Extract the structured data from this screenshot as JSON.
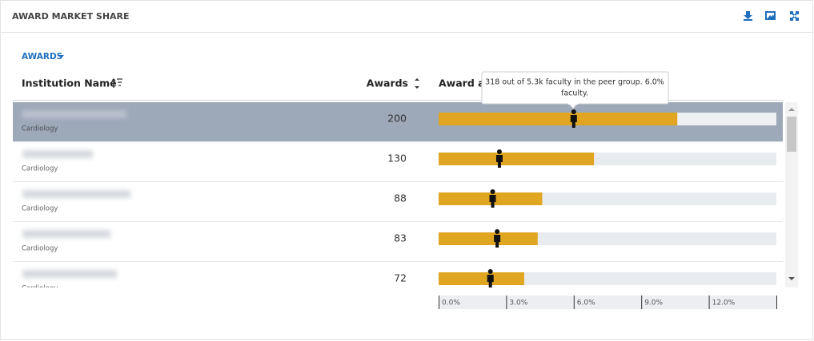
{
  "header": {
    "title": "AWARD MARKET SHARE"
  },
  "dropdown": {
    "label": "AWARDS"
  },
  "table": {
    "columns": [
      "Institution Name",
      "Awards",
      "Award ar"
    ],
    "rows": [
      {
        "department": "Cardiology",
        "awards": 200,
        "share": 10.6,
        "peer_marker": 6.0
      },
      {
        "department": "Cardiology",
        "awards": 130,
        "share": 6.9,
        "peer_marker": 2.7
      },
      {
        "department": "Cardiology",
        "awards": 88,
        "share": 4.6,
        "peer_marker": 2.4
      },
      {
        "department": "Cardiology",
        "awards": 83,
        "share": 4.4,
        "peer_marker": 2.6
      },
      {
        "department": "Cardiology",
        "awards": 72,
        "share": 3.8,
        "peer_marker": 2.3
      }
    ]
  },
  "axis": {
    "lim": [
      0,
      15
    ],
    "ticks": [
      {
        "value": 0,
        "label": "0.0%"
      },
      {
        "value": 3,
        "label": "3.0%"
      },
      {
        "value": 6,
        "label": "6.0%"
      },
      {
        "value": 9,
        "label": "9.0%"
      },
      {
        "value": 12,
        "label": "12.0%"
      }
    ]
  },
  "tooltip": {
    "lines": [
      "318 out of 5.3k faculty in the peer group. 6.0%",
      "faculty."
    ]
  }
}
